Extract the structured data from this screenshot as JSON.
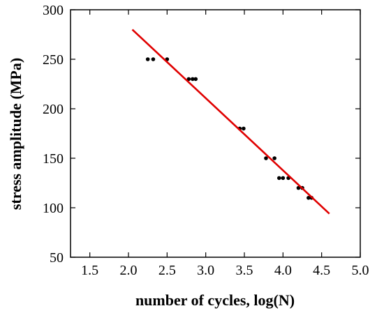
{
  "chart_data": {
    "type": "scatter",
    "xlabel": "number of cycles, log(N)",
    "ylabel": "stress amplitude (MPa)",
    "xlim": [
      1.25,
      5.0
    ],
    "ylim": [
      50,
      300
    ],
    "xticks": [
      "1.5",
      "2.0",
      "2.5",
      "3.0",
      "3.5",
      "4.0",
      "4.5",
      "5.0"
    ],
    "yticks": [
      "50",
      "100",
      "150",
      "200",
      "250",
      "300"
    ],
    "grid": false,
    "series": [
      {
        "kind": "points",
        "color": "#000000",
        "points": [
          [
            2.25,
            250
          ],
          [
            2.32,
            250
          ],
          [
            2.5,
            250
          ],
          [
            2.78,
            230
          ],
          [
            2.83,
            230
          ],
          [
            2.87,
            230
          ],
          [
            3.44,
            180
          ],
          [
            3.49,
            180
          ],
          [
            3.78,
            150
          ],
          [
            3.89,
            150
          ],
          [
            3.95,
            130
          ],
          [
            4.0,
            130
          ],
          [
            4.07,
            130
          ],
          [
            4.2,
            120
          ],
          [
            4.25,
            120
          ],
          [
            4.33,
            110
          ],
          [
            4.37,
            110
          ]
        ]
      },
      {
        "kind": "fit-line",
        "color": "#e00000",
        "points": [
          [
            2.05,
            280
          ],
          [
            4.6,
            94
          ]
        ]
      }
    ]
  }
}
